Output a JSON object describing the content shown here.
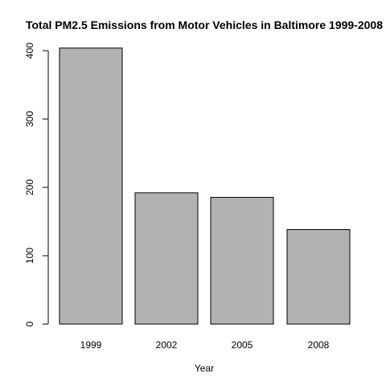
{
  "chart_data": {
    "type": "bar",
    "title": "Total PM2.5 Emissions from Motor Vehicles in Baltimore 1999-2008",
    "xlabel": "Year",
    "ylabel": "",
    "categories": [
      "1999",
      "2002",
      "2005",
      "2008"
    ],
    "values": [
      403.8,
      192.0,
      185.4,
      138.2
    ],
    "ylim": [
      0,
      400
    ],
    "yticks": [
      0,
      100,
      200,
      300,
      400
    ],
    "grid": false,
    "legend": "none",
    "bar_color": "#b2b2b2",
    "bar_edge_color": "#000000"
  }
}
